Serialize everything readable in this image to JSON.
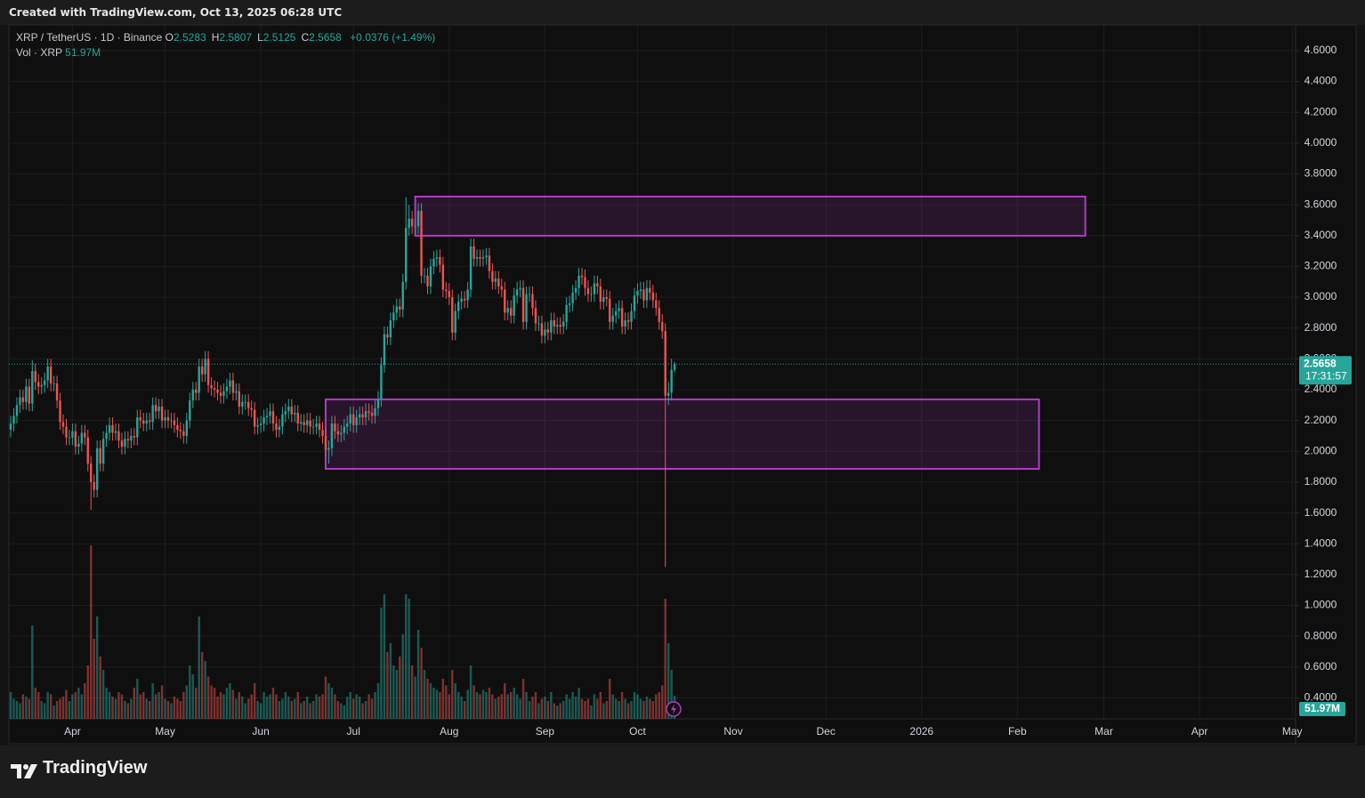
{
  "header": "Created with TradingView.com, Oct 13, 2025 06:28 UTC",
  "footer": "TradingView",
  "chart_data": {
    "type": "candlestick",
    "legend": {
      "symbol": "XRP / TetherUS · 1D · Binance",
      "items": [
        {
          "key": "O",
          "value": "2.5283"
        },
        {
          "key": "H",
          "value": "2.5807"
        },
        {
          "key": "L",
          "value": "2.5125"
        },
        {
          "key": "C",
          "value": "2.5658"
        }
      ],
      "change": "+0.0376 (+1.49%)"
    },
    "volume_legend": {
      "label": "Vol · XRP",
      "value": "51.97M"
    },
    "last_price_label": "2.5658",
    "countdown": "17:31:57",
    "volume_tag": "51.97M",
    "up_color": "#26a69a",
    "down_color": "#ef5350",
    "zone_color": "#b03bc4",
    "grid": true,
    "xlim": [
      -0.58,
      416.1
    ],
    "xticks": [
      {
        "value": 20,
        "label": "Apr"
      },
      {
        "value": 50,
        "label": "May"
      },
      {
        "value": 81,
        "label": "Jun"
      },
      {
        "value": 111,
        "label": "Jul"
      },
      {
        "value": 142,
        "label": "Aug"
      },
      {
        "value": 173,
        "label": "Sep"
      },
      {
        "value": 203,
        "label": "Oct"
      },
      {
        "value": 234,
        "label": "Nov"
      },
      {
        "value": 264,
        "label": "Dec"
      },
      {
        "value": 295,
        "label": "2026"
      },
      {
        "value": 326,
        "label": "Feb"
      },
      {
        "value": 354,
        "label": "Mar"
      },
      {
        "value": 385,
        "label": "Apr"
      },
      {
        "value": 415,
        "label": "May"
      }
    ],
    "ylim": [
      0.264,
      4.767
    ],
    "yticks": [
      {
        "value": 0.4,
        "label": "0.4000"
      },
      {
        "value": 0.6,
        "label": "0.6000"
      },
      {
        "value": 0.8,
        "label": "0.8000"
      },
      {
        "value": 1.0,
        "label": "1.0000"
      },
      {
        "value": 1.2,
        "label": "1.2000"
      },
      {
        "value": 1.4,
        "label": "1.4000"
      },
      {
        "value": 1.6,
        "label": "1.6000"
      },
      {
        "value": 1.8,
        "label": "1.8000"
      },
      {
        "value": 2.0,
        "label": "2.0000"
      },
      {
        "value": 2.2,
        "label": "2.2000"
      },
      {
        "value": 2.4,
        "label": "2.4000"
      },
      {
        "value": 2.6,
        "label": "2.6000"
      },
      {
        "value": 2.8,
        "label": "2.8000"
      },
      {
        "value": 3.0,
        "label": "3.0000"
      },
      {
        "value": 3.2,
        "label": "3.2000"
      },
      {
        "value": 3.4,
        "label": "3.4000"
      },
      {
        "value": 3.6,
        "label": "3.6000"
      },
      {
        "value": 3.8,
        "label": "3.8000"
      },
      {
        "value": 4.0,
        "label": "4.0000"
      },
      {
        "value": 4.2,
        "label": "4.2000"
      },
      {
        "value": 4.4,
        "label": "4.4000"
      },
      {
        "value": 4.6,
        "label": "4.6000"
      }
    ],
    "zones": [
      {
        "start": 131,
        "end": 348,
        "top": 3.653,
        "bottom": 3.399
      },
      {
        "start": 102,
        "end": 333,
        "top": 2.337,
        "bottom": 1.886
      }
    ],
    "open": [
      2.14,
      2.18,
      2.23,
      2.3,
      2.35,
      2.32,
      2.42,
      2.31,
      2.52,
      2.45,
      2.42,
      2.43,
      2.46,
      2.55,
      2.44,
      2.44,
      2.33,
      2.19,
      2.16,
      2.09,
      2.09,
      2.13,
      2.03,
      2.05,
      2.12,
      2.09,
      1.92,
      1.8,
      1.75,
      2.02,
      1.92,
      2.08,
      2.12,
      2.17,
      2.12,
      2.13,
      2.07,
      2.03,
      2.08,
      2.07,
      2.1,
      2.09,
      2.22,
      2.2,
      2.18,
      2.2,
      2.19,
      2.3,
      2.26,
      2.29,
      2.2,
      2.22,
      2.2,
      2.2,
      2.17,
      2.14,
      2.13,
      2.1,
      2.2,
      2.33,
      2.4,
      2.38,
      2.55,
      2.5,
      2.6,
      2.43,
      2.41,
      2.4,
      2.38,
      2.36,
      2.39,
      2.42,
      2.46,
      2.38,
      2.39,
      2.29,
      2.32,
      2.32,
      2.28,
      2.27,
      2.16,
      2.17,
      2.18,
      2.22,
      2.23,
      2.26,
      2.18,
      2.14,
      2.16,
      2.24,
      2.26,
      2.29,
      2.24,
      2.25,
      2.18,
      2.19,
      2.17,
      2.2,
      2.16,
      2.16,
      2.18,
      2.14,
      2.1,
      2.01,
      2.02,
      2.18,
      2.13,
      2.11,
      2.12,
      2.16,
      2.18,
      2.24,
      2.17,
      2.22,
      2.24,
      2.22,
      2.26,
      2.25,
      2.23,
      2.28,
      2.34,
      2.56,
      2.76,
      2.74,
      2.85,
      2.9,
      2.94,
      2.92,
      3.1,
      3.45,
      3.51,
      3.46,
      3.46,
      3.56,
      3.14,
      3.14,
      3.07,
      3.2,
      3.25,
      3.26,
      3.21,
      3.05,
      3.04,
      3.0,
      2.77,
      2.91,
      2.97,
      2.99,
      2.98,
      3.05,
      3.33,
      3.25,
      3.26,
      3.25,
      3.26,
      3.27,
      3.17,
      3.1,
      3.12,
      3.07,
      3.05,
      2.9,
      2.93,
      2.88,
      3.01,
      3.05,
      3.06,
      2.84,
      3.02,
      3.02,
      2.93,
      2.83,
      2.83,
      2.75,
      2.79,
      2.77,
      2.85,
      2.81,
      2.82,
      2.81,
      2.84,
      2.95,
      2.96,
      3.03,
      3.06,
      3.14,
      3.13,
      3.06,
      3.02,
      3.02,
      3.09,
      3.07,
      2.97,
      3.0,
      2.99,
      2.84,
      2.88,
      2.91,
      2.93,
      2.81,
      2.85,
      2.84,
      2.91,
      3.01,
      3.04,
      3.05,
      2.98,
      3.06,
      3.03,
      2.98,
      2.93,
      2.84,
      2.78,
      2.36,
      2.38,
      2.5283
    ],
    "high": [
      2.23,
      2.28,
      2.35,
      2.4,
      2.4,
      2.47,
      2.47,
      2.59,
      2.57,
      2.5,
      2.48,
      2.51,
      2.6,
      2.6,
      2.49,
      2.49,
      2.38,
      2.24,
      2.21,
      2.14,
      2.18,
      2.18,
      2.1,
      2.17,
      2.17,
      2.14,
      1.97,
      1.85,
      2.07,
      2.07,
      2.13,
      2.17,
      2.22,
      2.22,
      2.18,
      2.18,
      2.12,
      2.13,
      2.13,
      2.15,
      2.15,
      2.27,
      2.27,
      2.25,
      2.25,
      2.25,
      2.35,
      2.35,
      2.34,
      2.34,
      2.27,
      2.27,
      2.25,
      2.25,
      2.22,
      2.19,
      2.18,
      2.25,
      2.38,
      2.45,
      2.45,
      2.6,
      2.6,
      2.65,
      2.65,
      2.48,
      2.46,
      2.45,
      2.43,
      2.44,
      2.47,
      2.51,
      2.51,
      2.44,
      2.44,
      2.37,
      2.37,
      2.37,
      2.33,
      2.32,
      2.22,
      2.23,
      2.27,
      2.28,
      2.31,
      2.31,
      2.23,
      2.21,
      2.29,
      2.31,
      2.34,
      2.34,
      2.3,
      2.3,
      2.24,
      2.24,
      2.25,
      2.25,
      2.21,
      2.23,
      2.23,
      2.19,
      2.15,
      2.07,
      2.23,
      2.23,
      2.18,
      2.17,
      2.21,
      2.23,
      2.29,
      2.29,
      2.27,
      2.29,
      2.29,
      2.31,
      2.31,
      2.3,
      2.33,
      2.39,
      2.61,
      2.81,
      2.81,
      2.9,
      2.95,
      2.99,
      2.99,
      3.15,
      3.65,
      3.6,
      3.56,
      3.51,
      3.61,
      3.61,
      3.19,
      3.19,
      3.25,
      3.3,
      3.31,
      3.31,
      3.26,
      3.1,
      3.09,
      3.05,
      2.96,
      3.02,
      3.04,
      3.04,
      3.1,
      3.38,
      3.38,
      3.31,
      3.31,
      3.31,
      3.32,
      3.32,
      3.22,
      3.17,
      3.17,
      3.12,
      3.1,
      2.98,
      2.98,
      3.06,
      3.1,
      3.11,
      3.11,
      3.07,
      3.07,
      3.07,
      2.98,
      2.88,
      2.88,
      2.84,
      2.84,
      2.9,
      2.9,
      2.87,
      2.87,
      2.89,
      3.0,
      3.01,
      3.08,
      3.11,
      3.19,
      3.19,
      3.18,
      3.11,
      3.07,
      3.14,
      3.14,
      3.12,
      3.05,
      3.05,
      3.04,
      2.93,
      2.96,
      2.98,
      2.98,
      2.9,
      2.9,
      2.96,
      3.06,
      3.09,
      3.1,
      3.1,
      3.11,
      3.11,
      3.08,
      3.03,
      2.98,
      2.89,
      2.83,
      2.45,
      2.6,
      2.5807
    ],
    "low": [
      2.09,
      2.13,
      2.18,
      2.25,
      2.27,
      2.27,
      2.26,
      2.26,
      2.4,
      2.37,
      2.37,
      2.38,
      2.41,
      2.39,
      2.39,
      2.28,
      2.14,
      2.11,
      2.04,
      2.04,
      2.04,
      1.98,
      1.98,
      2.0,
      2.04,
      1.87,
      1.62,
      1.7,
      1.7,
      1.87,
      1.87,
      2.03,
      2.07,
      2.07,
      2.07,
      2.02,
      1.98,
      1.98,
      2.02,
      2.02,
      2.04,
      2.04,
      2.15,
      2.13,
      2.13,
      2.14,
      2.14,
      2.21,
      2.21,
      2.15,
      2.15,
      2.15,
      2.15,
      2.12,
      2.09,
      2.08,
      2.05,
      2.05,
      2.15,
      2.28,
      2.33,
      2.33,
      2.45,
      2.45,
      2.38,
      2.36,
      2.35,
      2.33,
      2.31,
      2.31,
      2.34,
      2.37,
      2.33,
      2.33,
      2.24,
      2.24,
      2.27,
      2.23,
      2.22,
      2.11,
      2.11,
      2.12,
      2.13,
      2.17,
      2.18,
      2.13,
      2.09,
      2.09,
      2.11,
      2.19,
      2.21,
      2.19,
      2.19,
      2.13,
      2.13,
      2.12,
      2.12,
      2.11,
      2.11,
      2.11,
      2.09,
      2.05,
      1.96,
      1.92,
      1.97,
      2.08,
      2.06,
      2.06,
      2.07,
      2.11,
      2.13,
      2.12,
      2.12,
      2.17,
      2.17,
      2.17,
      2.2,
      2.18,
      2.18,
      2.23,
      2.29,
      2.51,
      2.69,
      2.69,
      2.8,
      2.85,
      2.87,
      2.87,
      3.05,
      3.4,
      3.41,
      3.41,
      3.41,
      3.09,
      3.09,
      3.02,
      3.02,
      3.15,
      3.2,
      3.16,
      3.0,
      2.99,
      2.95,
      2.72,
      2.72,
      2.86,
      2.92,
      2.93,
      2.93,
      3.0,
      3.2,
      3.2,
      3.2,
      3.2,
      3.21,
      3.12,
      3.05,
      3.05,
      3.02,
      3.0,
      2.85,
      2.85,
      2.83,
      2.83,
      2.96,
      3.0,
      2.79,
      2.79,
      2.97,
      2.88,
      2.78,
      2.78,
      2.7,
      2.7,
      2.72,
      2.72,
      2.76,
      2.76,
      2.76,
      2.76,
      2.79,
      2.9,
      2.91,
      2.98,
      3.01,
      3.08,
      3.01,
      2.97,
      2.97,
      2.97,
      3.02,
      2.92,
      2.92,
      2.94,
      2.79,
      2.79,
      2.83,
      2.86,
      2.76,
      2.76,
      2.79,
      2.79,
      2.86,
      2.96,
      2.99,
      2.93,
      2.93,
      2.98,
      2.93,
      2.88,
      2.79,
      2.73,
      1.25,
      2.3,
      2.33,
      2.5125
    ],
    "close": [
      2.18,
      2.23,
      2.3,
      2.35,
      2.32,
      2.42,
      2.31,
      2.52,
      2.45,
      2.42,
      2.43,
      2.46,
      2.55,
      2.44,
      2.44,
      2.33,
      2.19,
      2.16,
      2.09,
      2.09,
      2.13,
      2.03,
      2.05,
      2.12,
      2.09,
      1.92,
      1.8,
      1.75,
      2.02,
      1.92,
      2.08,
      2.12,
      2.17,
      2.12,
      2.13,
      2.07,
      2.03,
      2.08,
      2.07,
      2.1,
      2.09,
      2.22,
      2.2,
      2.18,
      2.2,
      2.19,
      2.3,
      2.26,
      2.29,
      2.2,
      2.22,
      2.2,
      2.2,
      2.17,
      2.14,
      2.13,
      2.1,
      2.2,
      2.33,
      2.4,
      2.38,
      2.55,
      2.5,
      2.6,
      2.43,
      2.41,
      2.4,
      2.38,
      2.36,
      2.39,
      2.42,
      2.46,
      2.38,
      2.39,
      2.29,
      2.32,
      2.32,
      2.28,
      2.27,
      2.16,
      2.17,
      2.18,
      2.22,
      2.23,
      2.26,
      2.18,
      2.14,
      2.16,
      2.24,
      2.26,
      2.29,
      2.24,
      2.25,
      2.18,
      2.19,
      2.17,
      2.2,
      2.16,
      2.16,
      2.18,
      2.14,
      2.1,
      2.01,
      2.02,
      2.18,
      2.13,
      2.11,
      2.12,
      2.16,
      2.18,
      2.24,
      2.17,
      2.22,
      2.24,
      2.22,
      2.26,
      2.25,
      2.23,
      2.28,
      2.34,
      2.56,
      2.76,
      2.74,
      2.85,
      2.9,
      2.94,
      2.92,
      3.1,
      3.45,
      3.51,
      3.46,
      3.46,
      3.56,
      3.14,
      3.14,
      3.07,
      3.2,
      3.25,
      3.26,
      3.21,
      3.05,
      3.04,
      3.0,
      2.77,
      2.91,
      2.97,
      2.99,
      2.98,
      3.05,
      3.33,
      3.25,
      3.26,
      3.25,
      3.26,
      3.27,
      3.17,
      3.1,
      3.12,
      3.07,
      3.05,
      2.9,
      2.93,
      2.88,
      3.01,
      3.05,
      3.06,
      2.84,
      3.02,
      3.02,
      2.93,
      2.83,
      2.83,
      2.75,
      2.79,
      2.77,
      2.85,
      2.81,
      2.82,
      2.81,
      2.84,
      2.95,
      2.96,
      3.03,
      3.06,
      3.14,
      3.13,
      3.06,
      3.02,
      3.02,
      3.09,
      3.07,
      2.97,
      3.0,
      2.99,
      2.84,
      2.88,
      2.91,
      2.93,
      2.81,
      2.85,
      2.84,
      2.91,
      3.01,
      3.04,
      3.05,
      2.98,
      3.06,
      3.03,
      2.98,
      2.93,
      2.84,
      2.78,
      2.36,
      2.38,
      2.5283,
      2.5658
    ],
    "volume": [
      60,
      45,
      40,
      35,
      55,
      50,
      45,
      210,
      70,
      60,
      40,
      35,
      60,
      55,
      30,
      40,
      45,
      50,
      65,
      40,
      55,
      60,
      70,
      55,
      80,
      120,
      390,
      180,
      230,
      140,
      110,
      70,
      60,
      50,
      45,
      60,
      55,
      40,
      35,
      45,
      70,
      90,
      55,
      60,
      45,
      40,
      80,
      55,
      60,
      75,
      45,
      40,
      35,
      50,
      45,
      40,
      60,
      75,
      120,
      100,
      70,
      230,
      150,
      130,
      95,
      75,
      70,
      50,
      60,
      55,
      70,
      80,
      65,
      45,
      60,
      50,
      35,
      45,
      55,
      80,
      40,
      35,
      60,
      50,
      55,
      70,
      55,
      40,
      45,
      60,
      50,
      40,
      45,
      60,
      35,
      40,
      50,
      35,
      40,
      55,
      50,
      55,
      95,
      80,
      70,
      55,
      40,
      35,
      30,
      50,
      60,
      45,
      55,
      50,
      35,
      40,
      55,
      45,
      60,
      80,
      250,
      280,
      150,
      170,
      120,
      110,
      140,
      190,
      280,
      270,
      120,
      95,
      200,
      160,
      110,
      90,
      80,
      70,
      65,
      60,
      90,
      75,
      55,
      110,
      80,
      60,
      50,
      40,
      65,
      120,
      75,
      60,
      55,
      65,
      60,
      70,
      55,
      45,
      50,
      55,
      80,
      55,
      60,
      70,
      55,
      45,
      90,
      60,
      40,
      50,
      60,
      35,
      45,
      50,
      40,
      60,
      35,
      30,
      35,
      40,
      55,
      45,
      60,
      50,
      70,
      45,
      40,
      45,
      30,
      55,
      45,
      60,
      35,
      40,
      90,
      55,
      45,
      40,
      60,
      45,
      35,
      40,
      60,
      55,
      45,
      40,
      50,
      45,
      40,
      55,
      60,
      75,
      270,
      170,
      110,
      51.97
    ]
  }
}
